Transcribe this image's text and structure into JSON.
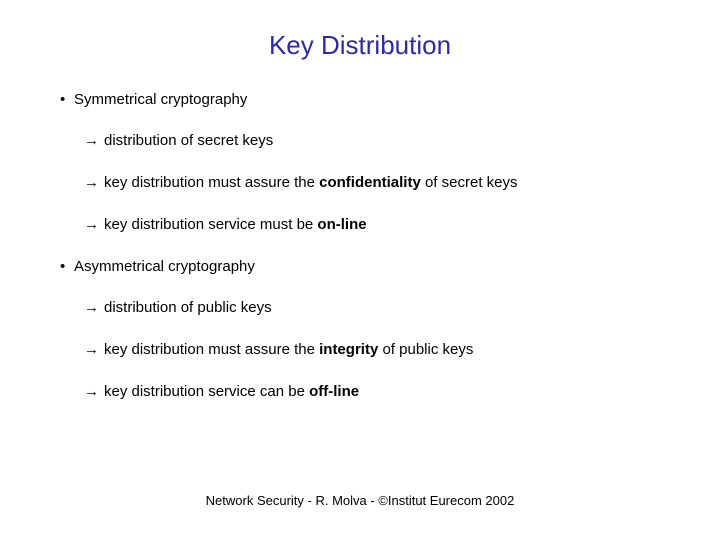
{
  "title": "Key Distribution",
  "title_color": "#2c2ca0",
  "title_fontsize": 26,
  "body_fontsize": 15,
  "body_color": "#000000",
  "background_color": "#ffffff",
  "section1": {
    "heading": "Symmetrical cryptography",
    "items": {
      "a": "distribution of secret keys",
      "b_pre": "key distribution must assure the ",
      "b_bold": "confidentiality",
      "b_post": " of secret keys",
      "c_pre": "key distribution service must be ",
      "c_bold": "on-line"
    }
  },
  "section2": {
    "heading": "Asymmetrical cryptography",
    "items": {
      "a": "distribution of public keys",
      "b_pre": "key distribution must assure the ",
      "b_bold": "integrity",
      "b_post": " of public keys",
      "c_pre": "key distribution service can be ",
      "c_bold": "off-line"
    }
  },
  "footer": "Network Security - R. Molva - ©Institut Eurecom 2002",
  "footer_fontsize": 13,
  "bullet_symbol": "•",
  "arrow_symbol": "→"
}
